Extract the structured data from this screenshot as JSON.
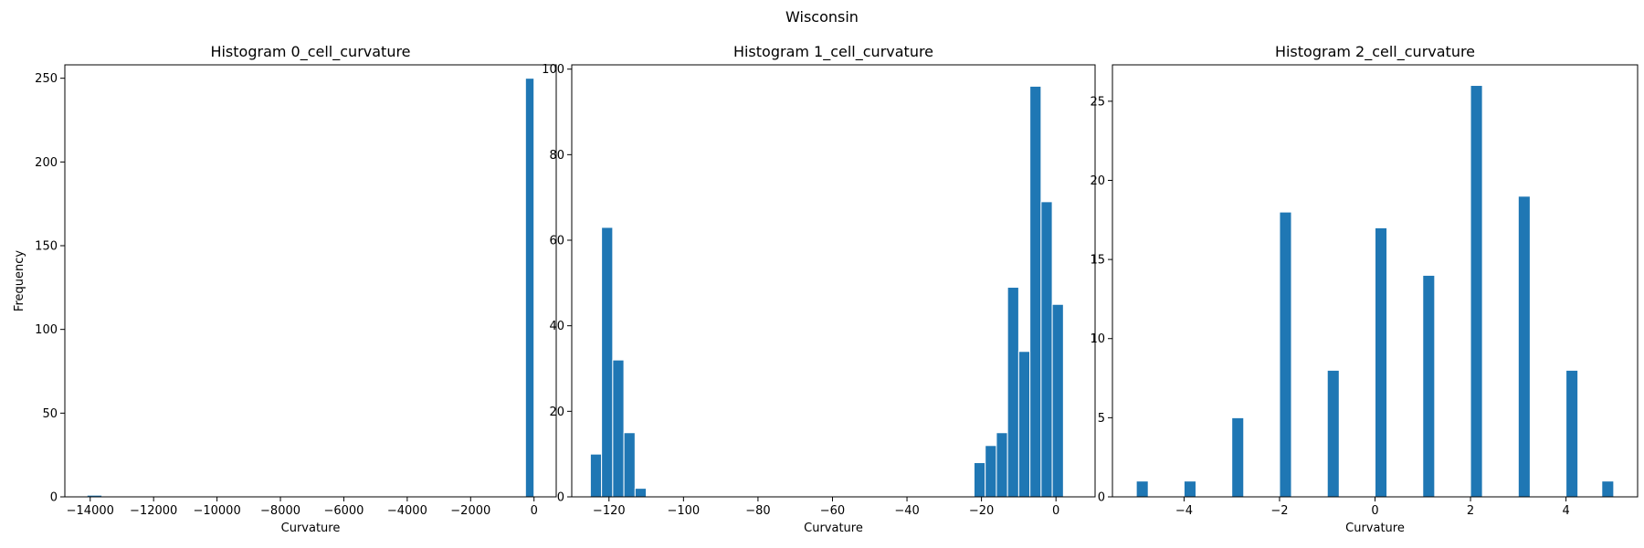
{
  "figure": {
    "title": "Wisconsin"
  },
  "colors": {
    "bar": "#1f77b4",
    "bar_edge": "#ffffff",
    "axes": "#000000"
  },
  "chart_data": [
    {
      "type": "bar",
      "title": "Histogram 0_cell_curvature",
      "xlabel": "Curvature",
      "ylabel": "Frequency",
      "xlim": [
        -14800,
        700
      ],
      "ylim": [
        0,
        258
      ],
      "xticks": [
        -14000,
        -12000,
        -10000,
        -8000,
        -6000,
        -4000,
        -2000,
        0
      ],
      "xtick_labels": [
        "−14000",
        "−12000",
        "−10000",
        "−8000",
        "−6000",
        "−4000",
        "−2000",
        "0"
      ],
      "yticks": [
        0,
        50,
        100,
        150,
        200,
        250
      ],
      "ytick_labels": [
        "0",
        "50",
        "100",
        "150",
        "200",
        "250"
      ],
      "bins": [
        {
          "x0": -14100,
          "x1": -13630,
          "count": 1
        },
        {
          "x0": -270,
          "x1": 0,
          "count": 250
        }
      ],
      "grid": false
    },
    {
      "type": "bar",
      "title": "Histogram 1_cell_curvature",
      "xlabel": "Curvature",
      "ylabel": "",
      "xlim": [
        -130,
        10.5
      ],
      "ylim": [
        0,
        101
      ],
      "xticks": [
        -120,
        -100,
        -80,
        -60,
        -40,
        -20,
        0
      ],
      "xtick_labels": [
        "−120",
        "−100",
        "−80",
        "−60",
        "−40",
        "−20",
        "0"
      ],
      "yticks": [
        0,
        20,
        40,
        60,
        80,
        100
      ],
      "ytick_labels": [
        "0",
        "20",
        "40",
        "60",
        "80",
        "100"
      ],
      "bins": [
        {
          "x0": -125,
          "x1": -122,
          "count": 10
        },
        {
          "x0": -122,
          "x1": -119,
          "count": 63
        },
        {
          "x0": -119,
          "x1": -116,
          "count": 32
        },
        {
          "x0": -116,
          "x1": -113,
          "count": 15
        },
        {
          "x0": -113,
          "x1": -110,
          "count": 2
        },
        {
          "x0": -22,
          "x1": -19,
          "count": 8
        },
        {
          "x0": -19,
          "x1": -16,
          "count": 12
        },
        {
          "x0": -16,
          "x1": -13,
          "count": 15
        },
        {
          "x0": -13,
          "x1": -10,
          "count": 49
        },
        {
          "x0": -10,
          "x1": -7,
          "count": 34
        },
        {
          "x0": -7,
          "x1": -4,
          "count": 96
        },
        {
          "x0": -4,
          "x1": -1,
          "count": 69
        },
        {
          "x0": -1,
          "x1": 2,
          "count": 45
        }
      ],
      "grid": false
    },
    {
      "type": "bar",
      "title": "Histogram 2_cell_curvature",
      "xlabel": "Curvature",
      "ylabel": "",
      "xlim": [
        -5.5,
        5.5
      ],
      "ylim": [
        0,
        27.3
      ],
      "xticks": [
        -4,
        -2,
        0,
        2,
        4
      ],
      "xtick_labels": [
        "−4",
        "−2",
        "0",
        "2",
        "4"
      ],
      "yticks": [
        0,
        5,
        10,
        15,
        20,
        25
      ],
      "ytick_labels": [
        "0",
        "5",
        "10",
        "15",
        "20",
        "25"
      ],
      "bins": [
        {
          "x0": -5.0,
          "x1": -4.75,
          "count": 1
        },
        {
          "x0": -4.0,
          "x1": -3.75,
          "count": 1
        },
        {
          "x0": -3.0,
          "x1": -2.75,
          "count": 5
        },
        {
          "x0": -2.0,
          "x1": -1.75,
          "count": 18
        },
        {
          "x0": -1.0,
          "x1": -0.75,
          "count": 8
        },
        {
          "x0": 0.0,
          "x1": 0.25,
          "count": 17
        },
        {
          "x0": 1.0,
          "x1": 1.25,
          "count": 14
        },
        {
          "x0": 2.0,
          "x1": 2.25,
          "count": 26
        },
        {
          "x0": 3.0,
          "x1": 3.25,
          "count": 19
        },
        {
          "x0": 4.0,
          "x1": 4.25,
          "count": 8
        },
        {
          "x0": 4.75,
          "x1": 5.0,
          "count": 1
        }
      ],
      "grid": false
    }
  ]
}
